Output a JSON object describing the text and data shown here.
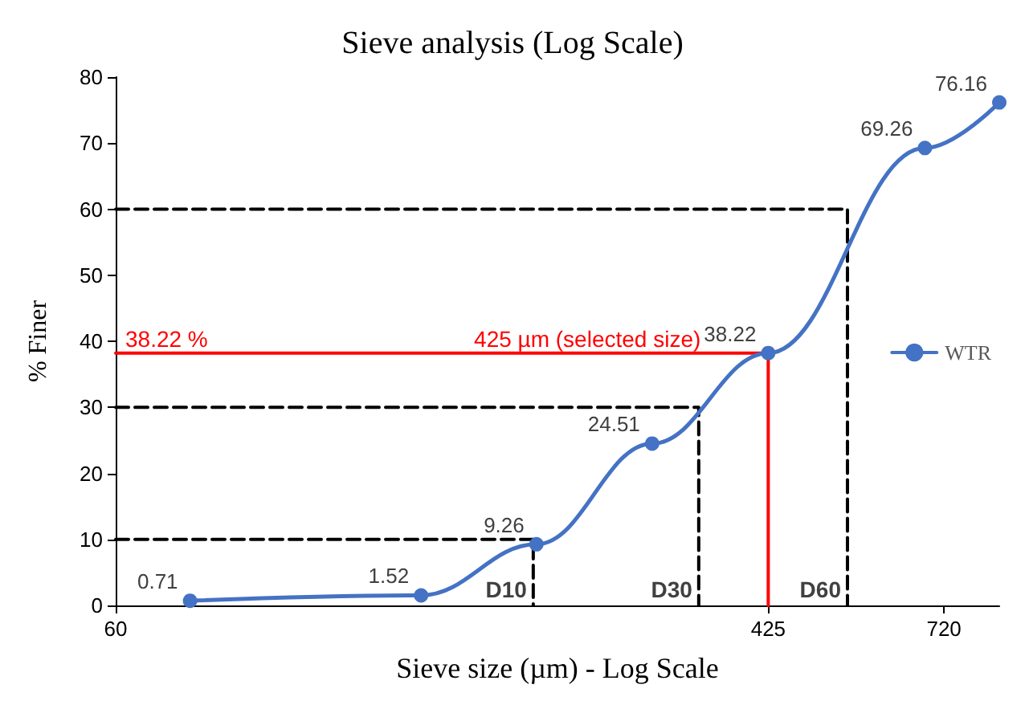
{
  "chart_data": {
    "type": "line",
    "title": "Sieve analysis (Log Scale)",
    "xlabel": "Sieve size (µm) - Log Scale",
    "ylabel": "% Finer",
    "log": "x",
    "xlim": [
      60,
      850
    ],
    "xticks": [
      60,
      425,
      720
    ],
    "ylim": [
      0,
      80
    ],
    "yticks": [
      0,
      10,
      20,
      30,
      40,
      50,
      60,
      70,
      80
    ],
    "grid": false,
    "legend": "right",
    "series": [
      {
        "name": "WTR",
        "color": "#4472c4",
        "marker": "circle",
        "line_style": "solid",
        "x": [
          75,
          150,
          212,
          300,
          425,
          680,
          850
        ],
        "values": [
          0.71,
          1.52,
          9.26,
          24.51,
          38.22,
          69.26,
          76.16
        ],
        "value_labels": [
          "0.71",
          "1.52",
          "9.26",
          "24.51",
          "38.22",
          "69.26",
          "76.16"
        ]
      },
      {
        "color": "#000000",
        "marker": "none",
        "line_style": "dashed",
        "x": [
          60,
          210,
          210
        ],
        "values": [
          10,
          10,
          0
        ]
      },
      {
        "color": "#000000",
        "marker": "none",
        "line_style": "dashed",
        "x": [
          60,
          345,
          345
        ],
        "values": [
          30,
          30,
          0
        ]
      },
      {
        "color": "#000000",
        "marker": "none",
        "line_style": "dashed",
        "x": [
          60,
          539,
          539
        ],
        "values": [
          60,
          60,
          0
        ]
      },
      {
        "color": "#ff0000",
        "marker": "none",
        "line_style": "solid",
        "x": [
          60,
          425,
          425
        ],
        "values": [
          38.22,
          38.22,
          0
        ]
      }
    ],
    "annotations": [
      {
        "text": "38.22 %",
        "x": 60,
        "y": 38.22
      },
      {
        "text": "425 µm (selected size)",
        "x": 247,
        "y": 38.22
      },
      {
        "text": "D10",
        "x": 210,
        "y": 0
      },
      {
        "text": "D30",
        "x": 345,
        "y": 0
      },
      {
        "text": "D60",
        "x": 539,
        "y": 0
      }
    ]
  }
}
